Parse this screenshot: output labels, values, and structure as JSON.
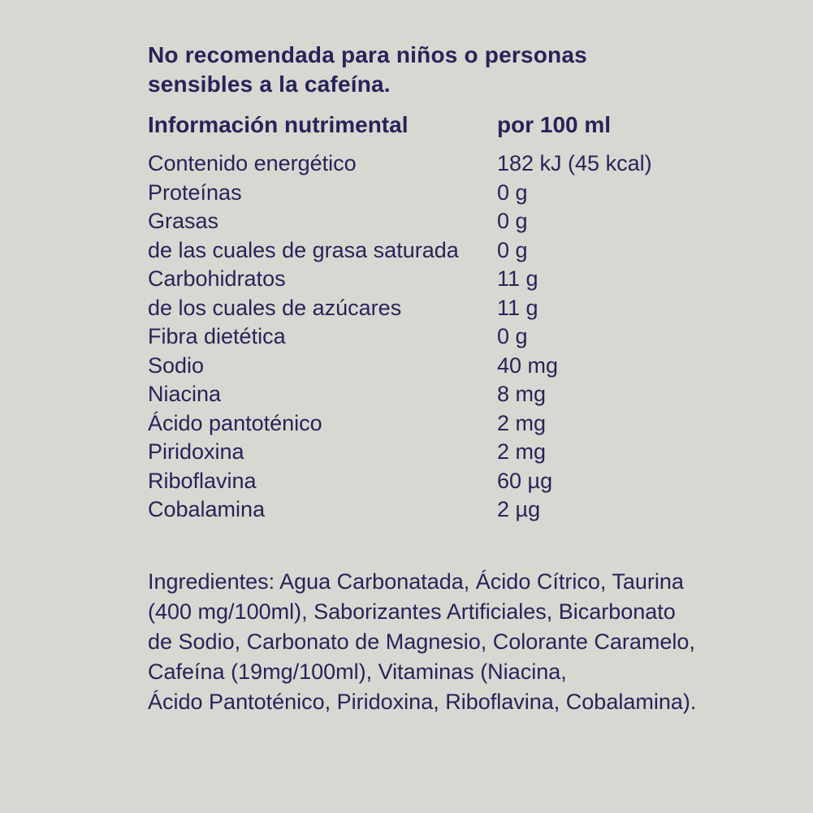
{
  "colors": {
    "background": "#d9d7d1",
    "text": "#262459"
  },
  "warning": {
    "text": "No recomendada para niños o personas sensibles a la cafeína.",
    "lines": [
      "No recomendada para niños o personas",
      "sensibles a la cafeína."
    ]
  },
  "table": {
    "title": "Información nutrimental",
    "column_header": "por 100 ml",
    "rows": [
      {
        "label": "Contenido energético",
        "value": "182 kJ (45 kcal)"
      },
      {
        "label": "Proteínas",
        "value": "0 g"
      },
      {
        "label": "Grasas",
        "value": "0 g"
      },
      {
        "label": "de las cuales de grasa saturada",
        "value": "0 g"
      },
      {
        "label": "Carbohidratos",
        "value": "11 g"
      },
      {
        "label": "de los cuales de azúcares",
        "value": "11 g"
      },
      {
        "label": "Fibra dietética",
        "value": "0 g"
      },
      {
        "label": "Sodio",
        "value": "40 mg"
      },
      {
        "label": "Niacina",
        "value": "8 mg"
      },
      {
        "label": "Ácido pantoténico",
        "value": "2 mg"
      },
      {
        "label": "Piridoxina",
        "value": "2 mg"
      },
      {
        "label": "Riboflavina",
        "value": "60 µg"
      },
      {
        "label": "Cobalamina",
        "value": "2 µg"
      }
    ]
  },
  "ingredients": {
    "lines": [
      "Ingredientes: Agua Carbonatada, Ácido Cítrico, Taurina",
      "(400 mg/100ml), Saborizantes Artificiales, Bicarbonato",
      "de Sodio, Carbonato de Magnesio, Colorante Caramelo,",
      "Cafeína (19mg/100ml), Vitaminas (Niacina,",
      "Ácido Pantoténico, Piridoxina, Riboflavina, Cobalamina)."
    ]
  }
}
